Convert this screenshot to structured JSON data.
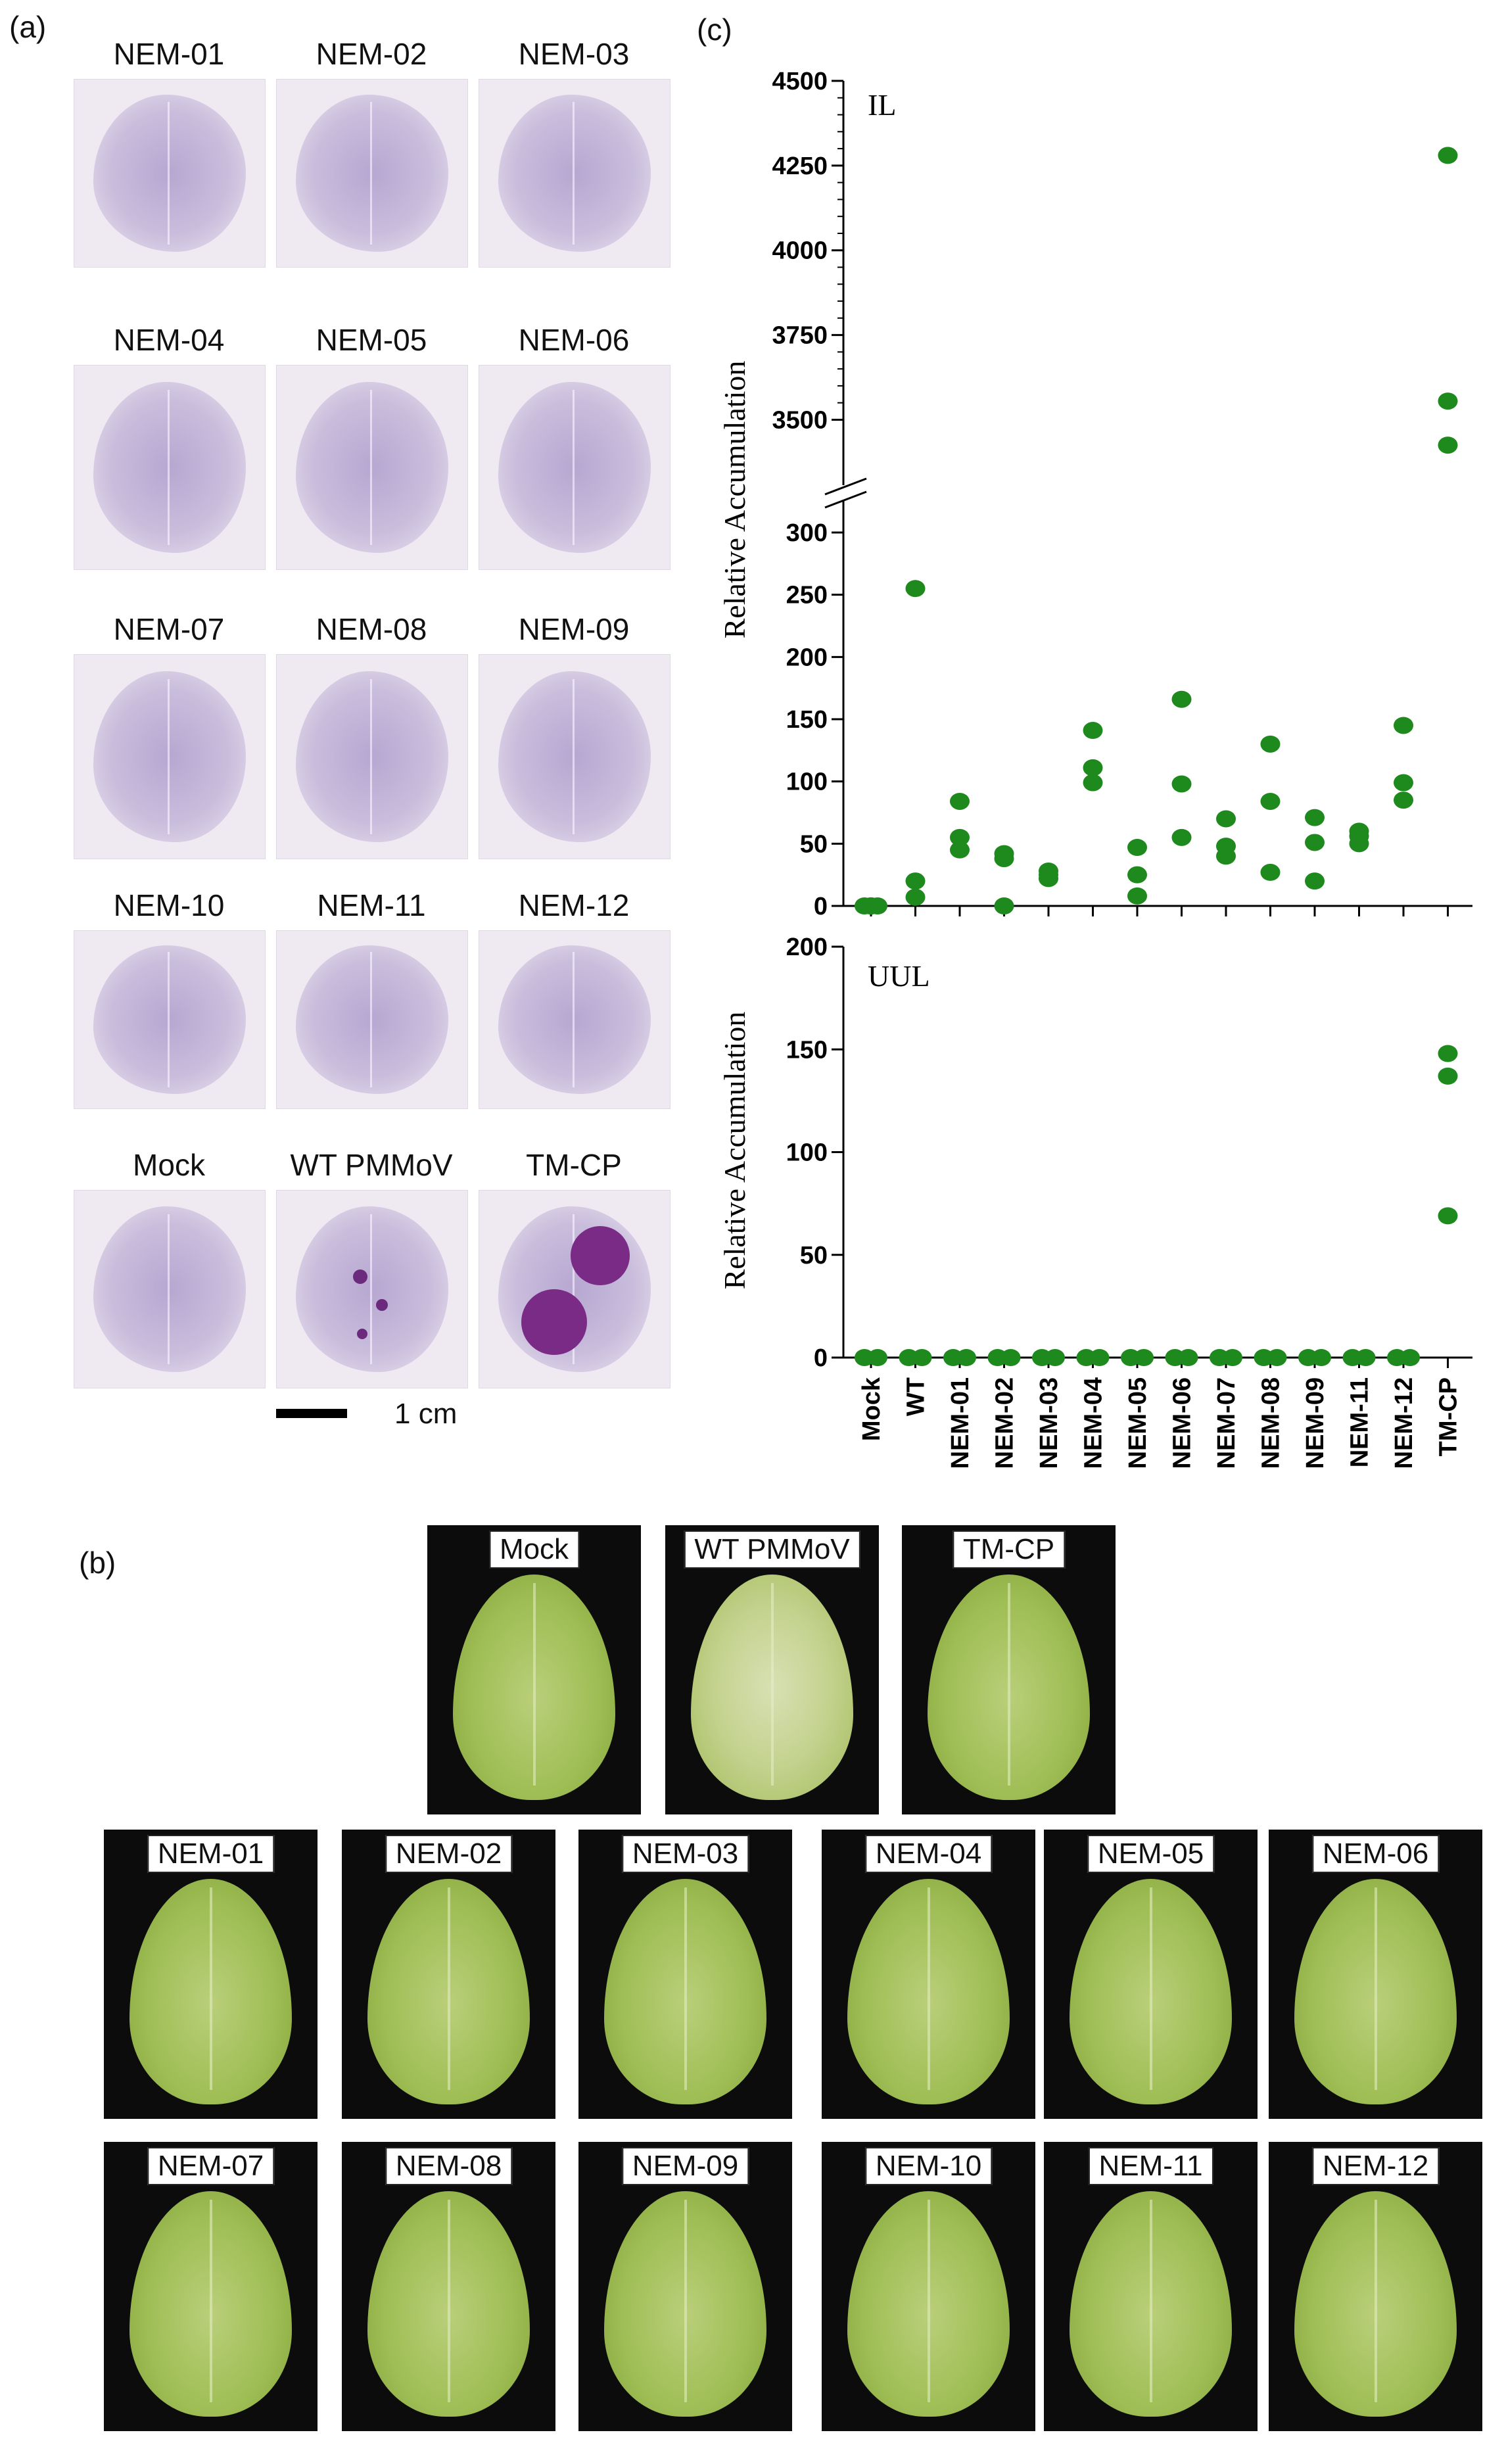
{
  "panels": {
    "a": "(a)",
    "b": "(b)",
    "c": "(c)"
  },
  "blots": {
    "items": [
      "NEM-01",
      "NEM-02",
      "NEM-03",
      "NEM-04",
      "NEM-05",
      "NEM-06",
      "NEM-07",
      "NEM-08",
      "NEM-09",
      "NEM-10",
      "NEM-11",
      "NEM-12",
      "Mock",
      "WT PMMoV",
      "TM-CP"
    ],
    "scale_label": "1 cm"
  },
  "photos": {
    "items": [
      "Mock",
      "WT PMMoV",
      "TM-CP",
      "NEM-01",
      "NEM-02",
      "NEM-03",
      "NEM-04",
      "NEM-05",
      "NEM-06",
      "NEM-07",
      "NEM-08",
      "NEM-09",
      "NEM-10",
      "NEM-11",
      "NEM-12"
    ]
  },
  "colors": {
    "dot": "#1e8a1e",
    "blot_stain": "#b7a7d1",
    "dark_spot": "#6b2a7c",
    "leaf": "#9fbe55"
  },
  "chart_data": [
    {
      "type": "scatter",
      "title": "IL",
      "ylabel": "Relative Accumulation",
      "categories": [
        "Mock",
        "WT",
        "NEM-01",
        "NEM-02",
        "NEM-03",
        "NEM-04",
        "NEM-05",
        "NEM-06",
        "NEM-07",
        "NEM-08",
        "NEM-09",
        "NEM-11",
        "NEM-12",
        "TM-CP"
      ],
      "axis_break": true,
      "ylim_lower": [
        0,
        300
      ],
      "yticks_lower": [
        0,
        50,
        100,
        150,
        200,
        250,
        300
      ],
      "ylim_upper": [
        3400,
        4500
      ],
      "yticks_upper": [
        3500,
        3750,
        4000,
        4250,
        4500
      ],
      "points": [
        {
          "category": "Mock",
          "values": [
            0,
            0,
            0
          ]
        },
        {
          "category": "WT",
          "values": [
            255,
            20,
            7
          ]
        },
        {
          "category": "NEM-01",
          "values": [
            84,
            55,
            45
          ]
        },
        {
          "category": "NEM-02",
          "values": [
            42,
            38,
            0
          ]
        },
        {
          "category": "NEM-03",
          "values": [
            28,
            25,
            22
          ]
        },
        {
          "category": "NEM-04",
          "values": [
            141,
            111,
            99
          ]
        },
        {
          "category": "NEM-05",
          "values": [
            47,
            25,
            8
          ]
        },
        {
          "category": "NEM-06",
          "values": [
            166,
            98,
            55
          ]
        },
        {
          "category": "NEM-07",
          "values": [
            70,
            48,
            40
          ]
        },
        {
          "category": "NEM-08",
          "values": [
            130,
            84,
            27
          ]
        },
        {
          "category": "NEM-09",
          "values": [
            71,
            51,
            20
          ]
        },
        {
          "category": "NEM-11",
          "values": [
            60,
            56,
            50
          ]
        },
        {
          "category": "NEM-12",
          "values": [
            145,
            99,
            85
          ]
        },
        {
          "category": "TM-CP",
          "values": [
            4280,
            3555,
            3425
          ]
        }
      ]
    },
    {
      "type": "scatter",
      "title": "UUL",
      "ylabel": "Relative Accumulation",
      "categories": [
        "Mock",
        "WT",
        "NEM-01",
        "NEM-02",
        "NEM-03",
        "NEM-04",
        "NEM-05",
        "NEM-06",
        "NEM-07",
        "NEM-08",
        "NEM-09",
        "NEM-11",
        "NEM-12",
        "TM-CP"
      ],
      "ylim": [
        0,
        200
      ],
      "yticks": [
        0,
        50,
        100,
        150,
        200
      ],
      "points": [
        {
          "category": "Mock",
          "values": [
            0,
            0,
            0
          ]
        },
        {
          "category": "WT",
          "values": [
            0,
            0,
            0
          ]
        },
        {
          "category": "NEM-01",
          "values": [
            0,
            0,
            0
          ]
        },
        {
          "category": "NEM-02",
          "values": [
            0,
            0,
            0
          ]
        },
        {
          "category": "NEM-03",
          "values": [
            0,
            0,
            0
          ]
        },
        {
          "category": "NEM-04",
          "values": [
            0,
            0,
            0
          ]
        },
        {
          "category": "NEM-05",
          "values": [
            0,
            0,
            0
          ]
        },
        {
          "category": "NEM-06",
          "values": [
            0,
            0,
            0
          ]
        },
        {
          "category": "NEM-07",
          "values": [
            0,
            0,
            0
          ]
        },
        {
          "category": "NEM-08",
          "values": [
            0,
            0,
            0
          ]
        },
        {
          "category": "NEM-09",
          "values": [
            0,
            0,
            0
          ]
        },
        {
          "category": "NEM-11",
          "values": [
            0,
            0,
            0
          ]
        },
        {
          "category": "NEM-12",
          "values": [
            0,
            0,
            0
          ]
        },
        {
          "category": "TM-CP",
          "values": [
            148,
            137,
            69
          ]
        }
      ]
    }
  ]
}
